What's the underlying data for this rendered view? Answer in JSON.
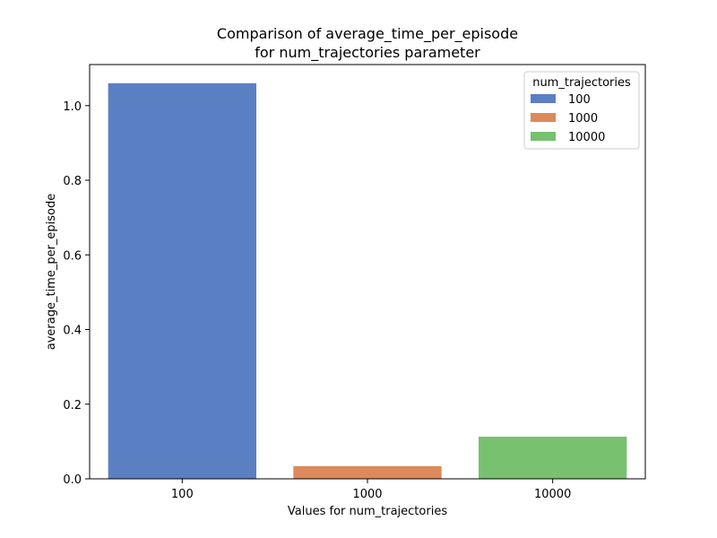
{
  "chart_data": {
    "type": "bar",
    "title_lines": [
      "Comparison of average_time_per_episode",
      "for num_trajectories parameter"
    ],
    "xlabel": "Values for num_trajectories",
    "ylabel": "average_time_per_episode",
    "categories": [
      "100",
      "1000",
      "10000"
    ],
    "values": [
      1.06,
      0.034,
      0.113
    ],
    "colors": [
      "#5b7fc3",
      "#dc8a5a",
      "#77c16f"
    ],
    "ylim": [
      0,
      1.11
    ],
    "yticks": [
      0.0,
      0.2,
      0.4,
      0.6,
      0.8,
      1.0
    ],
    "ytick_labels": [
      "0.0",
      "0.2",
      "0.4",
      "0.6",
      "0.8",
      "1.0"
    ],
    "grid": false,
    "legend": {
      "title": "num_trajectories",
      "placement": "top-right",
      "entries": [
        "100",
        "1000",
        "10000"
      ]
    }
  }
}
